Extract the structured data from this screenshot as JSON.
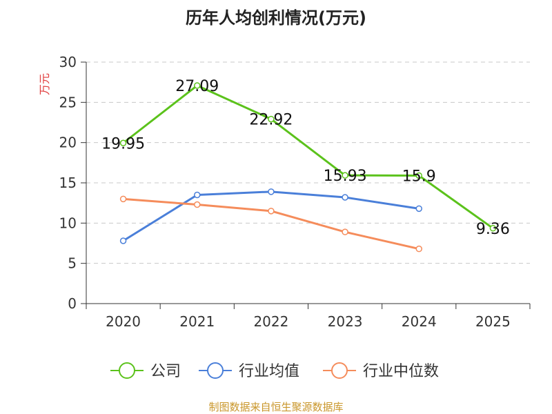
{
  "chart_data": {
    "type": "line",
    "title": "历年人均创利情况(万元)",
    "ylabel": "万元",
    "xlabel": "",
    "categories": [
      "2020",
      "2021",
      "2022",
      "2023",
      "2024",
      "2025"
    ],
    "ylim": [
      0,
      30
    ],
    "yticks": [
      0,
      5,
      10,
      15,
      20,
      25,
      30
    ],
    "grid": true,
    "legend_position": "bottom",
    "series": [
      {
        "name": "公司",
        "color": "#5bc21b",
        "values": [
          19.95,
          27.09,
          22.92,
          15.93,
          15.9,
          9.36
        ],
        "labels": [
          "19.95",
          "27.09",
          "22.92",
          "15.93",
          "15.9",
          "9.36"
        ]
      },
      {
        "name": "行业均值",
        "color": "#4a7fd9",
        "values": [
          7.8,
          13.5,
          13.9,
          13.2,
          11.8,
          null
        ]
      },
      {
        "name": "行业中位数",
        "color": "#f58c5b",
        "values": [
          13.0,
          12.3,
          11.5,
          8.9,
          6.8,
          null
        ]
      }
    ],
    "source": "制图数据来自恒生聚源数据库",
    "ylabel_color": "#e03c3c",
    "source_color": "#c9962a"
  }
}
